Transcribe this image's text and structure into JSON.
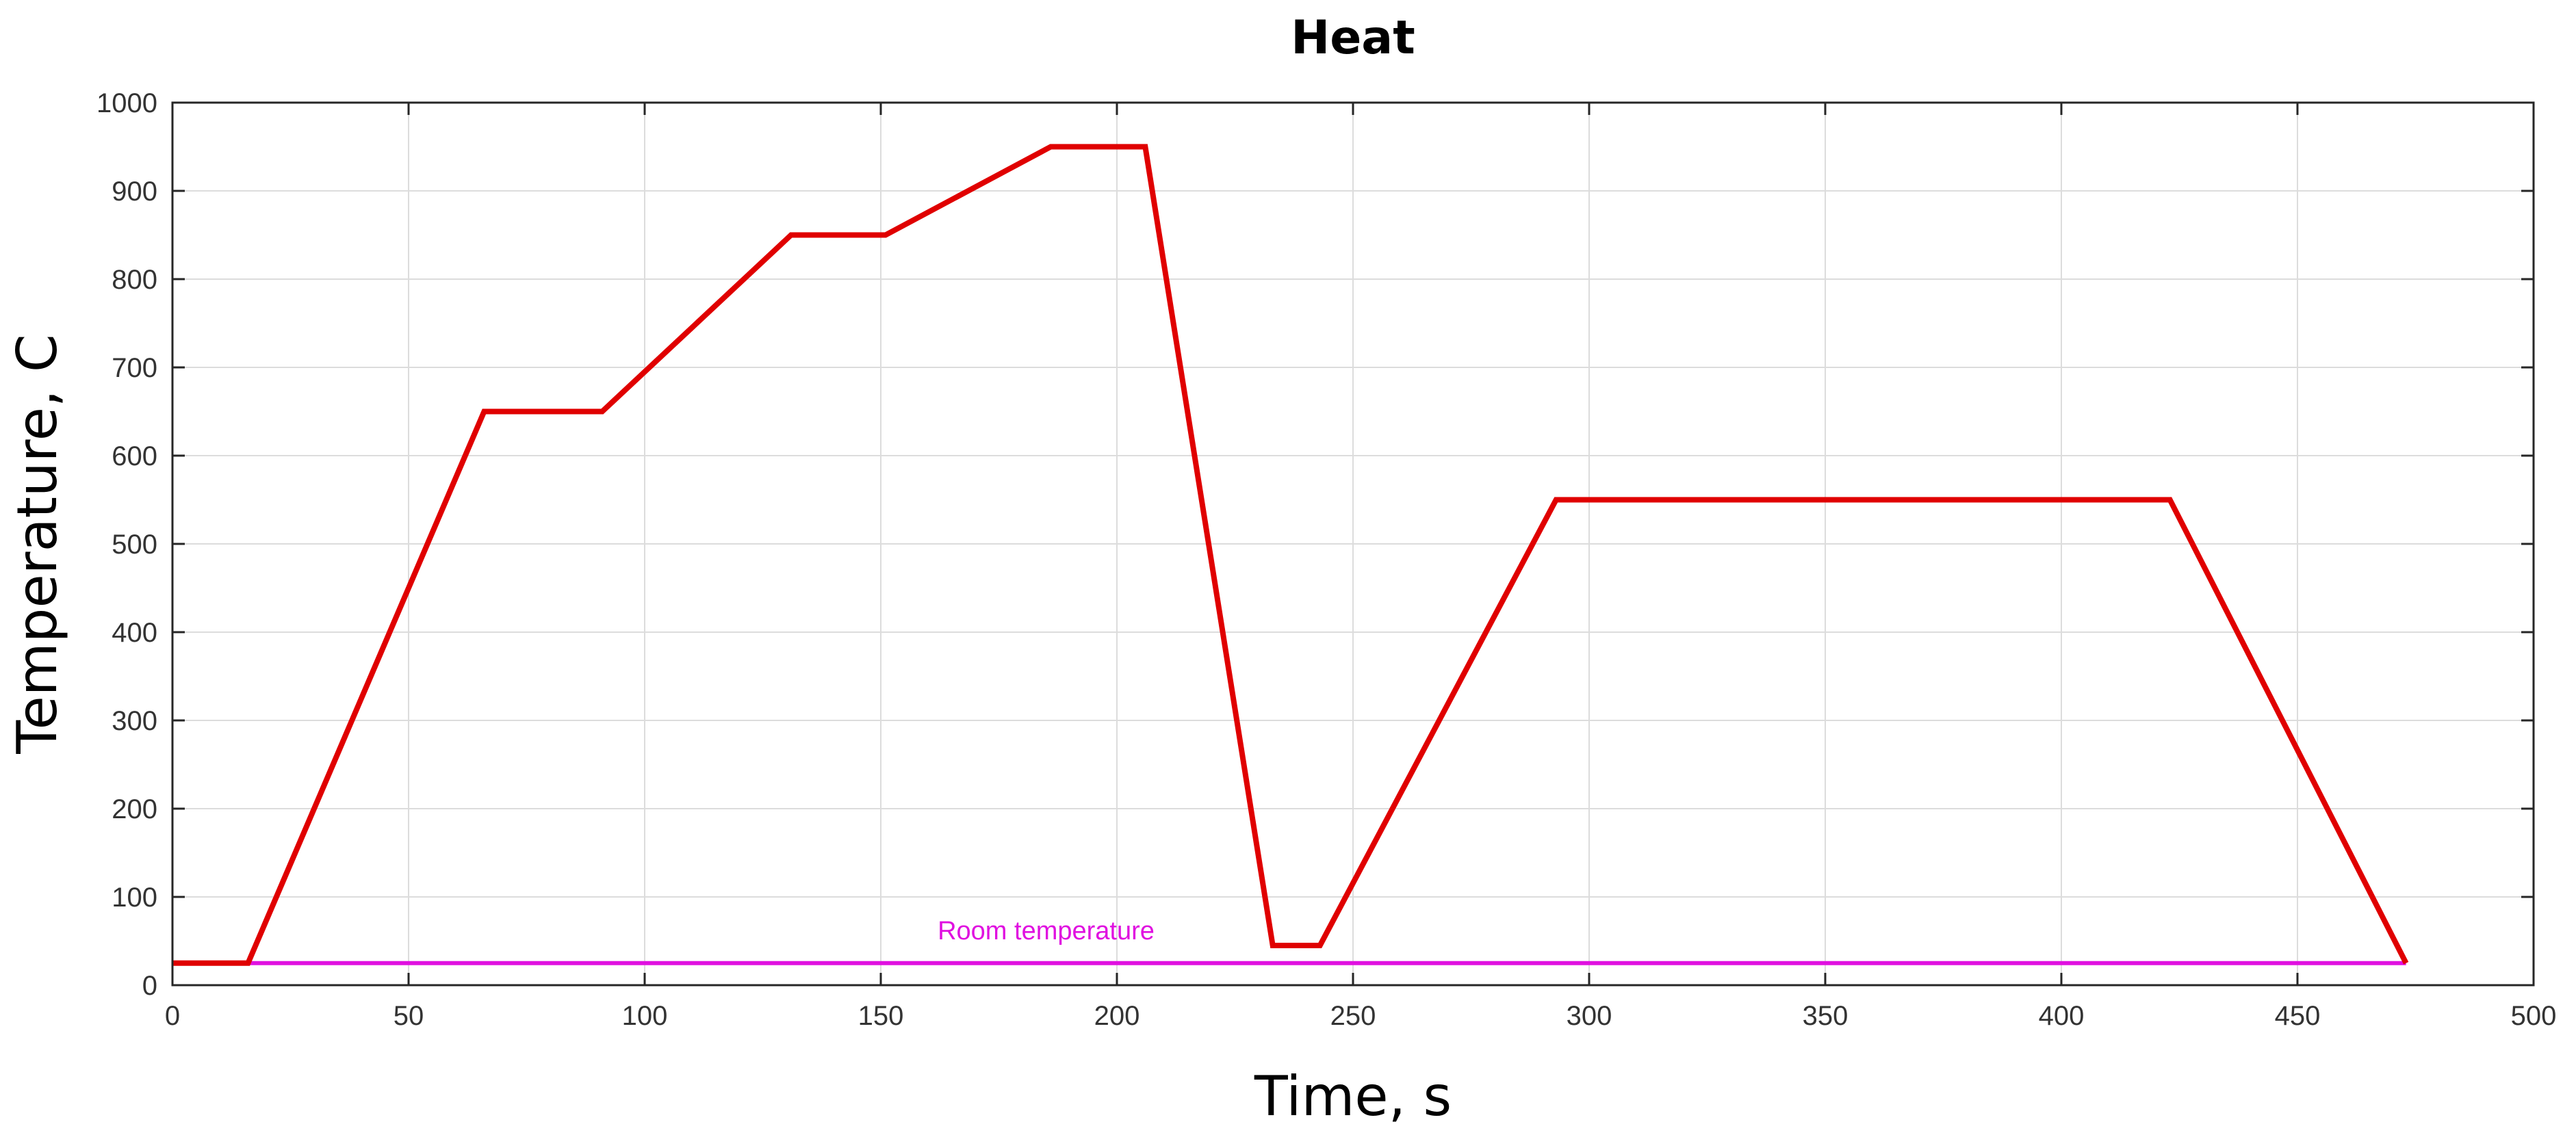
{
  "chart_data": {
    "type": "line",
    "title": "Heat",
    "xlabel": "Time, s",
    "ylabel": "Temperature, C",
    "xlim": [
      0,
      500
    ],
    "ylim": [
      0,
      1000
    ],
    "xticks": [
      0,
      50,
      100,
      150,
      200,
      250,
      300,
      350,
      400,
      450,
      500
    ],
    "yticks": [
      0,
      100,
      200,
      300,
      400,
      500,
      600,
      700,
      800,
      900,
      1000
    ],
    "grid": true,
    "series": [
      {
        "color": "#e00000",
        "x": [
          0,
          16,
          66,
          91,
          131,
          151,
          186,
          206,
          233,
          243,
          293,
          423,
          473
        ],
        "y": [
          25,
          25,
          650,
          650,
          850,
          850,
          950,
          950,
          45,
          45,
          550,
          550,
          25
        ]
      },
      {
        "name": "Room temperature",
        "color": "#e010e0",
        "x": [
          0,
          473
        ],
        "y": [
          25,
          25
        ]
      }
    ],
    "annotations": [
      {
        "text": "Room temperature",
        "x": 185,
        "y": 52,
        "color": "#e010e0"
      }
    ]
  }
}
